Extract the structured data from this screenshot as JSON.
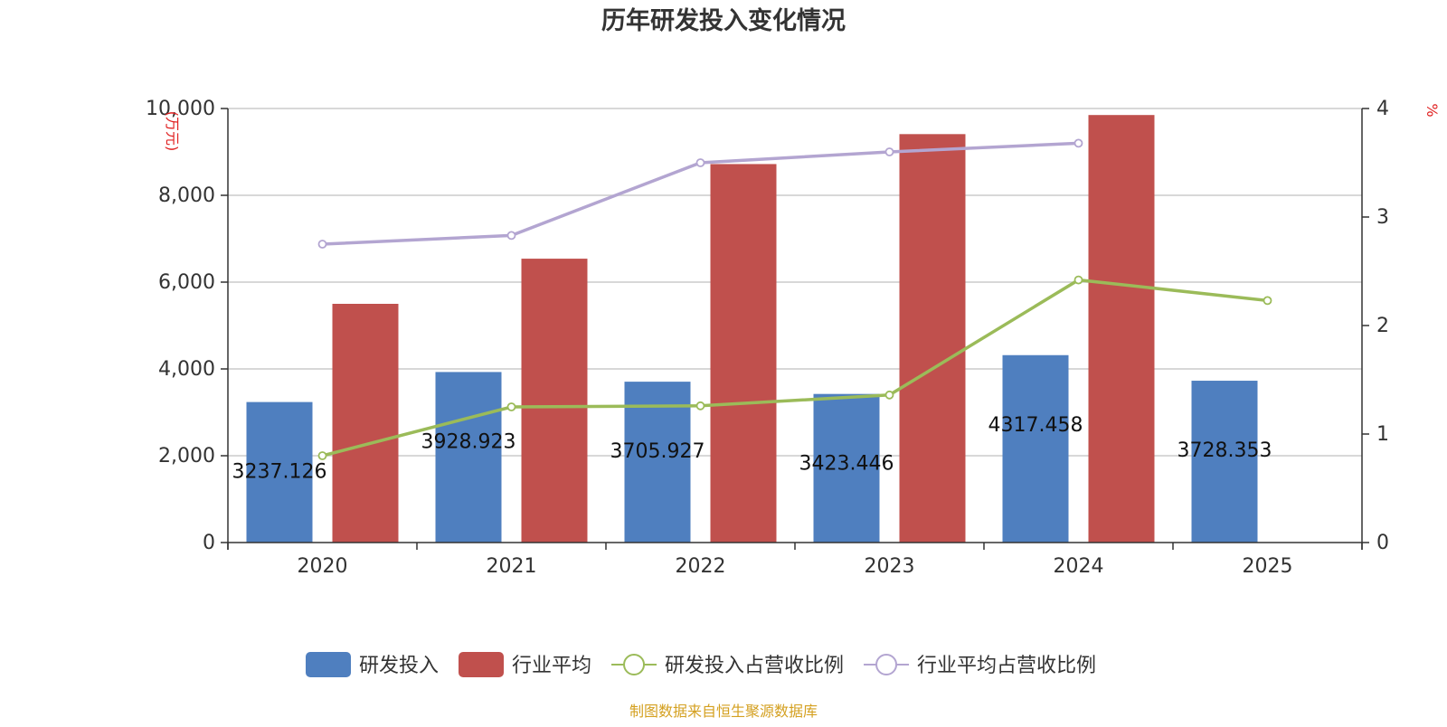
{
  "chart_data": {
    "type": "bar",
    "title": "历年研发投入变化情况",
    "categories": [
      "2020",
      "2021",
      "2022",
      "2023",
      "2024",
      "2025"
    ],
    "y_left": {
      "label": "(万元)",
      "ylim": [
        0,
        10000
      ],
      "ticks": [
        0,
        2000,
        4000,
        6000,
        8000,
        10000
      ],
      "tick_labels": [
        "0",
        "2,000",
        "4,000",
        "6,000",
        "8,000",
        "10,000"
      ]
    },
    "y_right": {
      "label": "%",
      "ylim": [
        0,
        4
      ],
      "ticks": [
        0,
        1,
        2,
        3,
        4
      ],
      "tick_labels": [
        "0",
        "1",
        "2",
        "3",
        "4"
      ]
    },
    "series": [
      {
        "name": "研发投入",
        "kind": "bar",
        "axis": "left",
        "color": "#4f7fbf",
        "values": [
          3237.126,
          3928.923,
          3705.927,
          3423.446,
          4317.458,
          3728.353
        ],
        "labels": [
          "3237.126",
          "3928.923",
          "3705.927",
          "3423.446",
          "4317.458",
          "3728.353"
        ]
      },
      {
        "name": "行业平均",
        "kind": "bar",
        "axis": "left",
        "color": "#c0504d",
        "values": [
          5500,
          6540,
          8720,
          9410,
          9850,
          null
        ]
      },
      {
        "name": "研发投入占营收比例",
        "kind": "line",
        "axis": "right",
        "color": "#9bbb59",
        "values": [
          0.8,
          1.25,
          1.26,
          1.36,
          2.42,
          2.23
        ]
      },
      {
        "name": "行业平均占营收比例",
        "kind": "line",
        "axis": "right",
        "color": "#b3a5d1",
        "values": [
          2.75,
          2.83,
          3.5,
          3.6,
          3.68,
          null
        ]
      }
    ],
    "legend_position": "bottom",
    "grid": true
  },
  "source_note": "制图数据来自恒生聚源数据库"
}
